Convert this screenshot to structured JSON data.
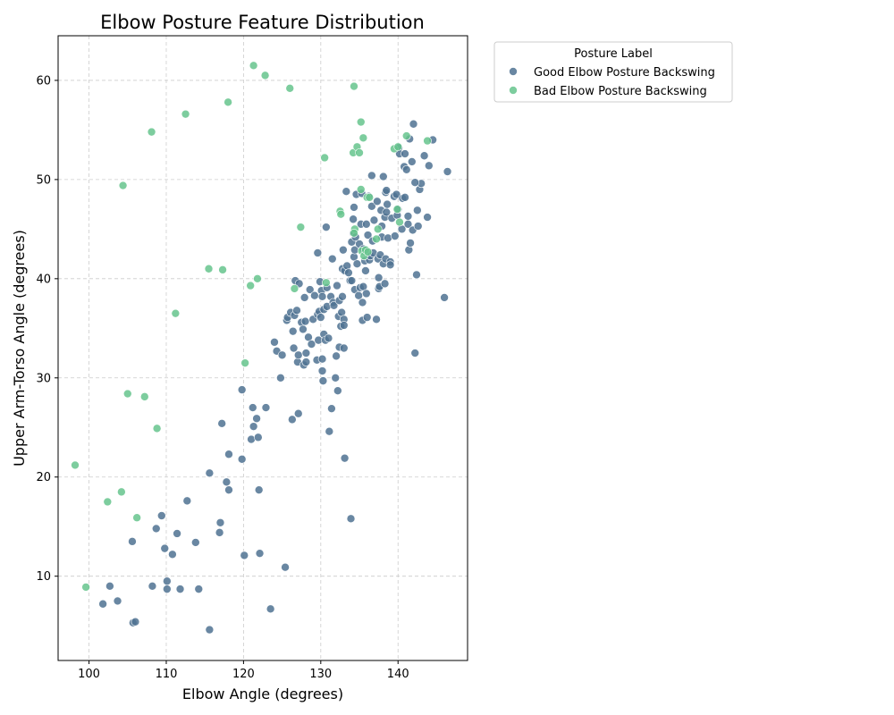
{
  "chart_data": {
    "type": "scatter",
    "title": "Elbow Posture Feature Distribution",
    "xlabel": "Elbow Angle (degrees)",
    "ylabel": "Upper Arm-Torso Angle (degrees)",
    "xlim": [
      96,
      149
    ],
    "ylim": [
      1.5,
      64.5
    ],
    "xticks": [
      100,
      110,
      120,
      130,
      140
    ],
    "yticks": [
      10,
      20,
      30,
      40,
      50,
      60
    ],
    "grid": true,
    "legend": {
      "title": "Posture Label",
      "placement": "outside-top-right"
    },
    "series": [
      {
        "name": "Good Elbow Posture Backswing",
        "color": "#4f7292",
        "points": [
          [
            101.8,
            7.2
          ],
          [
            102.7,
            9.0
          ],
          [
            103.7,
            7.5
          ],
          [
            105.6,
            13.5
          ],
          [
            105.7,
            5.3
          ],
          [
            106.0,
            5.4
          ],
          [
            108.2,
            9.0
          ],
          [
            108.7,
            14.8
          ],
          [
            109.4,
            16.1
          ],
          [
            109.8,
            12.8
          ],
          [
            110.1,
            9.5
          ],
          [
            110.1,
            8.7
          ],
          [
            110.8,
            12.2
          ],
          [
            111.4,
            14.3
          ],
          [
            111.8,
            8.7
          ],
          [
            112.7,
            17.6
          ],
          [
            113.8,
            13.4
          ],
          [
            114.2,
            8.7
          ],
          [
            115.6,
            4.6
          ],
          [
            115.6,
            20.4
          ],
          [
            117.0,
            15.4
          ],
          [
            116.9,
            14.4
          ],
          [
            117.2,
            25.4
          ],
          [
            117.8,
            19.5
          ],
          [
            118.1,
            18.7
          ],
          [
            118.1,
            22.3
          ],
          [
            119.8,
            21.8
          ],
          [
            119.8,
            28.8
          ],
          [
            120.1,
            12.1
          ],
          [
            121.0,
            23.8
          ],
          [
            121.2,
            27.0
          ],
          [
            121.3,
            25.1
          ],
          [
            121.7,
            25.9
          ],
          [
            121.9,
            24.0
          ],
          [
            122.0,
            18.7
          ],
          [
            122.1,
            12.3
          ],
          [
            122.9,
            27.0
          ],
          [
            123.5,
            6.7
          ],
          [
            124.0,
            33.6
          ],
          [
            124.3,
            32.7
          ],
          [
            124.8,
            30.0
          ],
          [
            125.0,
            32.3
          ],
          [
            125.4,
            10.9
          ],
          [
            125.6,
            35.8
          ],
          [
            125.7,
            36.1
          ],
          [
            126.1,
            36.6
          ],
          [
            126.3,
            25.8
          ],
          [
            126.4,
            34.7
          ],
          [
            126.5,
            33.0
          ],
          [
            126.6,
            36.3
          ],
          [
            126.7,
            39.8
          ],
          [
            126.9,
            36.8
          ],
          [
            127.0,
            31.6
          ],
          [
            127.1,
            32.3
          ],
          [
            127.1,
            26.4
          ],
          [
            127.2,
            39.5
          ],
          [
            127.5,
            35.6
          ],
          [
            127.7,
            34.9
          ],
          [
            127.8,
            31.3
          ],
          [
            127.9,
            38.1
          ],
          [
            128.0,
            35.7
          ],
          [
            128.1,
            32.5
          ],
          [
            128.1,
            31.6
          ],
          [
            128.4,
            34.1
          ],
          [
            128.6,
            38.9
          ],
          [
            128.8,
            33.4
          ],
          [
            129.0,
            35.9
          ],
          [
            129.2,
            38.3
          ],
          [
            129.5,
            31.8
          ],
          [
            129.6,
            36.4
          ],
          [
            129.6,
            42.6
          ],
          [
            129.7,
            33.8
          ],
          [
            129.8,
            36.7
          ],
          [
            129.9,
            39.7
          ],
          [
            130.0,
            36.1
          ],
          [
            130.1,
            38.8
          ],
          [
            130.2,
            38.2
          ],
          [
            130.2,
            31.9
          ],
          [
            130.2,
            30.7
          ],
          [
            130.3,
            29.7
          ],
          [
            130.4,
            34.4
          ],
          [
            130.4,
            36.9
          ],
          [
            130.6,
            33.8
          ],
          [
            130.7,
            45.2
          ],
          [
            130.8,
            39.1
          ],
          [
            130.8,
            37.2
          ],
          [
            131.0,
            34.0
          ],
          [
            131.1,
            24.6
          ],
          [
            131.3,
            38.2
          ],
          [
            131.4,
            26.9
          ],
          [
            131.5,
            42.0
          ],
          [
            131.6,
            37.6
          ],
          [
            131.7,
            37.3
          ],
          [
            131.9,
            30.0
          ],
          [
            132.0,
            32.2
          ],
          [
            132.1,
            39.3
          ],
          [
            132.2,
            28.7
          ],
          [
            132.3,
            36.2
          ],
          [
            132.4,
            37.8
          ],
          [
            132.4,
            33.1
          ],
          [
            132.6,
            35.2
          ],
          [
            132.7,
            36.6
          ],
          [
            132.8,
            41.0
          ],
          [
            132.8,
            38.2
          ],
          [
            132.9,
            42.9
          ],
          [
            133.0,
            35.9
          ],
          [
            133.0,
            35.3
          ],
          [
            133.0,
            33.0
          ],
          [
            133.1,
            40.8
          ],
          [
            133.1,
            21.9
          ],
          [
            133.3,
            48.8
          ],
          [
            133.4,
            41.3
          ],
          [
            133.6,
            40.6
          ],
          [
            133.8,
            39.8
          ],
          [
            133.9,
            15.8
          ],
          [
            134.0,
            43.7
          ],
          [
            134.0,
            39.8
          ],
          [
            134.2,
            46.0
          ],
          [
            134.2,
            44.6
          ],
          [
            134.3,
            47.2
          ],
          [
            134.3,
            42.2
          ],
          [
            134.4,
            38.9
          ],
          [
            134.4,
            42.9
          ],
          [
            134.5,
            44.2
          ],
          [
            134.6,
            48.5
          ],
          [
            134.7,
            41.5
          ],
          [
            134.9,
            38.3
          ],
          [
            135.0,
            43.5
          ],
          [
            135.1,
            39.1
          ],
          [
            135.2,
            45.5
          ],
          [
            135.3,
            48.6
          ],
          [
            135.4,
            37.6
          ],
          [
            135.4,
            35.8
          ],
          [
            135.5,
            43.0
          ],
          [
            135.5,
            39.2
          ],
          [
            135.7,
            41.8
          ],
          [
            135.8,
            40.8
          ],
          [
            135.9,
            38.5
          ],
          [
            135.9,
            45.5
          ],
          [
            136.0,
            36.1
          ],
          [
            136.1,
            44.4
          ],
          [
            136.2,
            48.3
          ],
          [
            136.3,
            41.9
          ],
          [
            136.4,
            42.3
          ],
          [
            136.6,
            47.3
          ],
          [
            136.6,
            50.4
          ],
          [
            136.7,
            43.8
          ],
          [
            136.8,
            42.6
          ],
          [
            136.9,
            45.9
          ],
          [
            137.2,
            35.9
          ],
          [
            137.3,
            47.8
          ],
          [
            137.4,
            42.0
          ],
          [
            137.5,
            40.1
          ],
          [
            137.5,
            39.0
          ],
          [
            137.6,
            39.2
          ],
          [
            137.7,
            42.4
          ],
          [
            137.8,
            46.9
          ],
          [
            137.9,
            44.2
          ],
          [
            137.9,
            45.3
          ],
          [
            138.1,
            50.3
          ],
          [
            138.1,
            41.5
          ],
          [
            138.3,
            46.2
          ],
          [
            138.3,
            39.5
          ],
          [
            138.4,
            48.7
          ],
          [
            138.4,
            42.0
          ],
          [
            138.5,
            46.7
          ],
          [
            138.5,
            48.9
          ],
          [
            138.6,
            47.5
          ],
          [
            138.7,
            44.1
          ],
          [
            139.0,
            41.7
          ],
          [
            139.0,
            41.4
          ],
          [
            139.2,
            46.1
          ],
          [
            139.5,
            48.3
          ],
          [
            139.6,
            44.3
          ],
          [
            139.8,
            48.5
          ],
          [
            139.9,
            46.4
          ],
          [
            140.0,
            47.0
          ],
          [
            140.1,
            53.2
          ],
          [
            140.2,
            52.6
          ],
          [
            140.5,
            45.0
          ],
          [
            140.6,
            48.1
          ],
          [
            140.8,
            51.3
          ],
          [
            140.9,
            52.6
          ],
          [
            140.9,
            48.2
          ],
          [
            141.1,
            51.0
          ],
          [
            141.3,
            46.3
          ],
          [
            141.3,
            45.5
          ],
          [
            141.4,
            42.9
          ],
          [
            141.5,
            54.1
          ],
          [
            141.6,
            43.6
          ],
          [
            141.8,
            51.8
          ],
          [
            141.9,
            44.9
          ],
          [
            142.0,
            55.6
          ],
          [
            142.2,
            32.5
          ],
          [
            142.4,
            40.4
          ],
          [
            142.5,
            46.9
          ],
          [
            142.6,
            45.3
          ],
          [
            142.8,
            49.0
          ],
          [
            143.0,
            49.6
          ],
          [
            143.4,
            52.4
          ],
          [
            143.8,
            46.2
          ],
          [
            144.0,
            51.4
          ],
          [
            144.5,
            54.0
          ],
          [
            146.0,
            38.1
          ],
          [
            146.4,
            50.8
          ],
          [
            142.2,
            49.7
          ]
        ]
      },
      {
        "name": "Bad Elbow Posture Backswing",
        "color": "#66c48d",
        "points": [
          [
            98.2,
            21.2
          ],
          [
            99.6,
            8.9
          ],
          [
            102.4,
            17.5
          ],
          [
            104.2,
            18.5
          ],
          [
            104.4,
            49.4
          ],
          [
            105.0,
            28.4
          ],
          [
            106.2,
            15.9
          ],
          [
            107.2,
            28.1
          ],
          [
            108.1,
            54.8
          ],
          [
            108.8,
            24.9
          ],
          [
            111.2,
            36.5
          ],
          [
            112.5,
            56.6
          ],
          [
            115.5,
            41.0
          ],
          [
            117.3,
            40.9
          ],
          [
            118.0,
            57.8
          ],
          [
            120.2,
            31.5
          ],
          [
            120.9,
            39.3
          ],
          [
            121.3,
            61.5
          ],
          [
            121.8,
            40.0
          ],
          [
            122.8,
            60.5
          ],
          [
            126.0,
            59.2
          ],
          [
            126.6,
            39.0
          ],
          [
            127.4,
            45.2
          ],
          [
            130.5,
            52.2
          ],
          [
            130.7,
            39.6
          ],
          [
            132.5,
            46.8
          ],
          [
            132.6,
            46.5
          ],
          [
            134.2,
            52.7
          ],
          [
            134.3,
            59.4
          ],
          [
            134.4,
            45.0
          ],
          [
            134.3,
            44.6
          ],
          [
            134.7,
            53.3
          ],
          [
            135.0,
            52.7
          ],
          [
            135.2,
            55.8
          ],
          [
            135.2,
            49.0
          ],
          [
            135.3,
            42.8
          ],
          [
            135.5,
            54.2
          ],
          [
            135.6,
            42.3
          ],
          [
            135.8,
            42.9
          ],
          [
            136.0,
            48.2
          ],
          [
            136.1,
            42.7
          ],
          [
            136.3,
            48.2
          ],
          [
            137.2,
            44.0
          ],
          [
            137.4,
            45.0
          ],
          [
            139.5,
            53.1
          ],
          [
            139.9,
            47.0
          ],
          [
            140.0,
            53.3
          ],
          [
            140.2,
            45.7
          ],
          [
            141.1,
            54.4
          ],
          [
            143.8,
            53.9
          ]
        ]
      }
    ]
  }
}
